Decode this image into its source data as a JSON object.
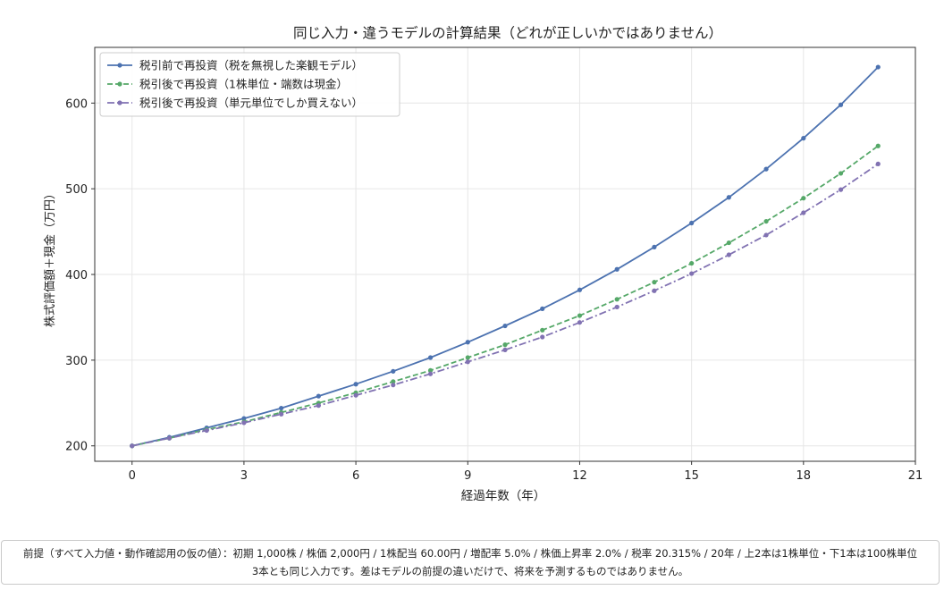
{
  "chart_data": {
    "type": "line",
    "title": "同じ入力・違うモデルの計算結果（どれが正しいかではありません）",
    "xlabel": "経過年数（年）",
    "ylabel": "株式評価額＋現金（万円）",
    "xlim": [
      -1,
      21
    ],
    "ylim": [
      182,
      665
    ],
    "xticks": [
      0,
      3,
      6,
      9,
      12,
      15,
      18,
      21
    ],
    "yticks": [
      200,
      300,
      400,
      500,
      600
    ],
    "grid": true,
    "legend_position": "top-left",
    "x": [
      0,
      1,
      2,
      3,
      4,
      5,
      6,
      7,
      8,
      9,
      10,
      11,
      12,
      13,
      14,
      15,
      16,
      17,
      18,
      19,
      20
    ],
    "series": [
      {
        "name": "税引前で再投資（税を無視した楽観モデル）",
        "color": "#4c72b0",
        "style": "solid",
        "values": [
          200,
          210,
          221,
          232,
          244,
          258,
          272,
          287,
          303,
          321,
          340,
          360,
          382,
          406,
          432,
          460,
          490,
          523,
          559,
          598,
          642
        ]
      },
      {
        "name": "税引後で再投資（1株単位・端数は現金）",
        "color": "#55a868",
        "style": "dashed",
        "values": [
          200,
          209,
          219,
          228,
          239,
          250,
          262,
          275,
          288,
          303,
          318,
          335,
          352,
          371,
          391,
          413,
          437,
          462,
          489,
          518,
          550
        ]
      },
      {
        "name": "税引後で再投資（単元単位でしか買えない）",
        "color": "#8172b2",
        "style": "dashdot",
        "values": [
          200,
          209,
          218,
          227,
          237,
          247,
          259,
          271,
          284,
          298,
          312,
          327,
          344,
          362,
          381,
          401,
          423,
          446,
          472,
          499,
          529
        ]
      }
    ]
  },
  "note": {
    "line1": "前提（すべて入力値・動作確認用の仮の値）：初期 1,000株 / 株価 2,000円 / 1株配当 60.00円 / 増配率 5.0% / 株価上昇率 2.0% / 税率 20.315% / 20年 / 上2本は1株単位・下1本は100株単位",
    "line2": "3本とも同じ入力です。差はモデルの前提の違いだけで、将来を予測するものではありません。"
  }
}
